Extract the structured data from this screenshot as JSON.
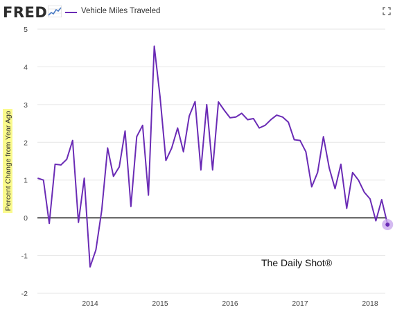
{
  "header": {
    "logo_text": "FRED",
    "logo_registered": "®",
    "legend_label": "Vehicle Miles Traveled",
    "expand_icon": "expand-icon"
  },
  "watermark": "The Daily Shot®",
  "colors": {
    "series": "#6a2bb5",
    "zero_line": "#000000",
    "grid": "#e6e6e6",
    "axis_title_highlight": "#fafa8c",
    "end_marker": "#c9a9ee"
  },
  "chart_data": {
    "type": "line",
    "title": "",
    "xlabel": "",
    "ylabel": "Percent Change from Year Ago",
    "ylim": [
      -2,
      5
    ],
    "yticks": [
      5,
      4,
      3,
      2,
      1,
      0,
      -1,
      -2
    ],
    "xticks": [
      "2014",
      "2015",
      "2016",
      "2017",
      "2018"
    ],
    "grid": "horizontal",
    "legend": "top-left",
    "series": [
      {
        "name": "Vehicle Miles Traveled",
        "x": [
          "2013-04",
          "2013-05",
          "2013-06",
          "2013-07",
          "2013-08",
          "2013-09",
          "2013-10",
          "2013-11",
          "2013-12",
          "2014-01",
          "2014-02",
          "2014-03",
          "2014-04",
          "2014-05",
          "2014-06",
          "2014-07",
          "2014-08",
          "2014-09",
          "2014-10",
          "2014-11",
          "2014-12",
          "2015-01",
          "2015-02",
          "2015-03",
          "2015-04",
          "2015-05",
          "2015-06",
          "2015-07",
          "2015-08",
          "2015-09",
          "2015-10",
          "2015-11",
          "2015-12",
          "2016-01",
          "2016-02",
          "2016-03",
          "2016-04",
          "2016-05",
          "2016-06",
          "2016-07",
          "2016-08",
          "2016-09",
          "2016-10",
          "2016-11",
          "2016-12",
          "2017-01",
          "2017-02",
          "2017-03",
          "2017-04",
          "2017-05",
          "2017-06",
          "2017-07",
          "2017-08",
          "2017-09",
          "2017-10",
          "2017-11",
          "2017-12",
          "2018-01",
          "2018-02",
          "2018-03",
          "2018-04"
        ],
        "values": [
          1.05,
          1.0,
          -0.15,
          1.42,
          1.4,
          1.55,
          2.05,
          -0.12,
          1.05,
          -1.3,
          -0.85,
          0.2,
          1.85,
          1.1,
          1.35,
          2.3,
          0.3,
          2.15,
          2.45,
          0.6,
          4.55,
          3.2,
          1.52,
          1.85,
          2.38,
          1.75,
          2.7,
          3.08,
          1.27,
          3.0,
          1.27,
          3.07,
          2.85,
          2.65,
          2.67,
          2.77,
          2.6,
          2.63,
          2.38,
          2.45,
          2.6,
          2.72,
          2.67,
          2.53,
          2.07,
          2.05,
          1.75,
          0.82,
          1.2,
          2.15,
          1.32,
          0.77,
          1.42,
          0.25,
          1.2,
          1.0,
          0.68,
          0.5,
          -0.08,
          0.48,
          -0.18
        ]
      }
    ]
  }
}
